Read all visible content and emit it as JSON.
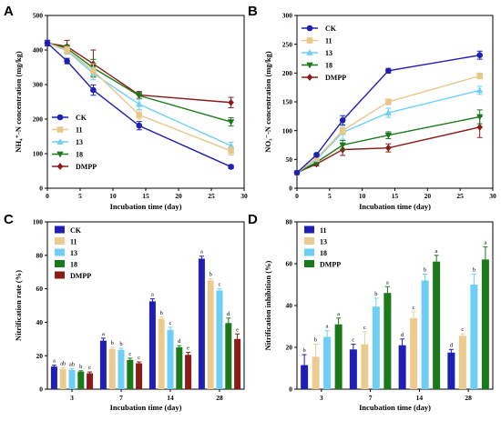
{
  "chart_data": [
    {
      "id": "A",
      "panel_letter": "A",
      "type": "line",
      "xlabel": "Incubation time (day)",
      "ylabel": "NH₄⁺-N concentration (mg/kg)",
      "xlim": [
        0,
        30
      ],
      "ylim": [
        0,
        500
      ],
      "xticks": [
        0,
        5,
        10,
        15,
        20,
        25,
        30
      ],
      "yticks": [
        0,
        100,
        200,
        300,
        400,
        500
      ],
      "grid": false,
      "legend_position": "bottom-left",
      "x": [
        0,
        3,
        7,
        14,
        28
      ],
      "series": [
        {
          "name": "CK",
          "color": "#1f1fb4",
          "marker": "circle",
          "values": [
            420,
            368,
            284,
            181,
            62
          ],
          "errors": [
            8,
            8,
            15,
            12,
            5
          ]
        },
        {
          "name": "11",
          "color": "#e8c78b",
          "marker": "square",
          "values": [
            420,
            400,
            340,
            212,
            108
          ],
          "errors": [
            8,
            10,
            20,
            12,
            12
          ]
        },
        {
          "name": "13",
          "color": "#6ecff6",
          "marker": "triangle-up",
          "values": [
            420,
            398,
            332,
            243,
            123
          ],
          "errors": [
            8,
            10,
            18,
            15,
            10
          ]
        },
        {
          "name": "18",
          "color": "#1a7a1a",
          "marker": "triangle-down",
          "values": [
            420,
            405,
            348,
            268,
            192
          ],
          "errors": [
            8,
            10,
            25,
            10,
            12
          ]
        },
        {
          "name": "DMPP",
          "color": "#8b1a1a",
          "marker": "diamond",
          "values": [
            420,
            410,
            360,
            270,
            248
          ],
          "errors": [
            8,
            18,
            40,
            10,
            15
          ]
        }
      ]
    },
    {
      "id": "B",
      "panel_letter": "B",
      "type": "line",
      "xlabel": "Incubation time (day)",
      "ylabel": "NO₃⁻-N concentration (mg/kg)",
      "xlim": [
        0,
        30
      ],
      "ylim": [
        0,
        300
      ],
      "xticks": [
        0,
        5,
        10,
        15,
        20,
        25,
        30
      ],
      "yticks": [
        0,
        50,
        100,
        150,
        200,
        250,
        300
      ],
      "grid": false,
      "legend_position": "top-left",
      "x": [
        0,
        3,
        7,
        14,
        28
      ],
      "series": [
        {
          "name": "CK",
          "color": "#1f1fb4",
          "marker": "circle",
          "values": [
            27,
            58,
            118,
            204,
            231
          ],
          "errors": [
            2,
            3,
            8,
            4,
            7
          ]
        },
        {
          "name": "11",
          "color": "#e8c78b",
          "marker": "square",
          "values": [
            27,
            52,
            100,
            150,
            195
          ],
          "errors": [
            2,
            3,
            6,
            5,
            5
          ]
        },
        {
          "name": "13",
          "color": "#6ecff6",
          "marker": "triangle-up",
          "values": [
            27,
            50,
            97,
            131,
            170
          ],
          "errors": [
            2,
            3,
            12,
            8,
            7
          ]
        },
        {
          "name": "18",
          "color": "#1a7a1a",
          "marker": "triangle-down",
          "values": [
            27,
            45,
            75,
            92,
            124
          ],
          "errors": [
            2,
            3,
            8,
            6,
            12
          ]
        },
        {
          "name": "DMPP",
          "color": "#8b1a1a",
          "marker": "diamond",
          "values": [
            27,
            42,
            67,
            70,
            106
          ],
          "errors": [
            2,
            3,
            10,
            7,
            18
          ]
        }
      ]
    },
    {
      "id": "C",
      "panel_letter": "C",
      "type": "bar",
      "xlabel": "Incubation time (day)",
      "ylabel": "Nitrification rate (%)",
      "categories": [
        "3",
        "7",
        "14",
        "28"
      ],
      "ylim": [
        0,
        100
      ],
      "yticks": [
        0,
        20,
        40,
        60,
        80,
        100
      ],
      "grid": false,
      "legend_position": "top-left",
      "series": [
        {
          "name": "CK",
          "color": "#1f1fb4",
          "values": [
            13.5,
            29,
            52.5,
            78
          ],
          "errors": [
            0.8,
            1.5,
            1.5,
            1.5
          ],
          "letters": [
            "a",
            "a",
            "a",
            "a"
          ]
        },
        {
          "name": "11",
          "color": "#eccb90",
          "values": [
            12,
            24,
            42,
            65
          ],
          "errors": [
            0.8,
            1.0,
            1.0,
            1.0
          ],
          "letters": [
            "ab",
            "b",
            "b",
            "b"
          ]
        },
        {
          "name": "13",
          "color": "#6ecff6",
          "values": [
            11.5,
            23.5,
            35.5,
            59
          ],
          "errors": [
            0.8,
            1.0,
            1.5,
            1.0
          ],
          "letters": [
            "ab",
            "b",
            "c",
            "c"
          ]
        },
        {
          "name": "18",
          "color": "#1a7a1a",
          "values": [
            10.5,
            17.5,
            25,
            39.5
          ],
          "errors": [
            0.5,
            1.0,
            1.0,
            3.0
          ],
          "letters": [
            "b",
            "c",
            "d",
            "d"
          ]
        },
        {
          "name": "DMPP",
          "color": "#8b1a1a",
          "values": [
            9.5,
            15.5,
            20.5,
            30
          ],
          "errors": [
            0.8,
            0.8,
            1.5,
            3.0
          ],
          "letters": [
            "c",
            "c",
            "e",
            "e"
          ]
        }
      ]
    },
    {
      "id": "D",
      "panel_letter": "D",
      "type": "bar",
      "xlabel": "Incubation time (day)",
      "ylabel": "Nitrification inhibition (%)",
      "categories": [
        "3",
        "7",
        "14",
        "28"
      ],
      "ylim": [
        0,
        80
      ],
      "yticks": [
        0,
        20,
        40,
        60,
        80
      ],
      "grid": false,
      "legend_position": "top-left",
      "series": [
        {
          "name": "11",
          "color": "#1f1fb4",
          "values": [
            11.5,
            19,
            21,
            17.5
          ],
          "errors": [
            5,
            2.5,
            3,
            1.5
          ],
          "letters": [
            "b",
            "c",
            "d",
            "d"
          ]
        },
        {
          "name": "13",
          "color": "#eccb90",
          "values": [
            15.5,
            21.5,
            34,
            25.5
          ],
          "errors": [
            6,
            6,
            3,
            1
          ],
          "letters": [
            "b",
            "c",
            "c",
            "c"
          ]
        },
        {
          "name": "18",
          "color": "#6ecff6",
          "values": [
            25,
            39.5,
            52,
            50
          ],
          "errors": [
            3,
            4,
            3,
            5
          ],
          "letters": [
            "a",
            "b",
            "b",
            "b"
          ]
        },
        {
          "name": "DMPP",
          "color": "#1a7a1a",
          "values": [
            31,
            46,
            61,
            62
          ],
          "errors": [
            3,
            3,
            3,
            6
          ],
          "letters": [
            "a",
            "a",
            "a",
            "a"
          ]
        }
      ]
    }
  ]
}
